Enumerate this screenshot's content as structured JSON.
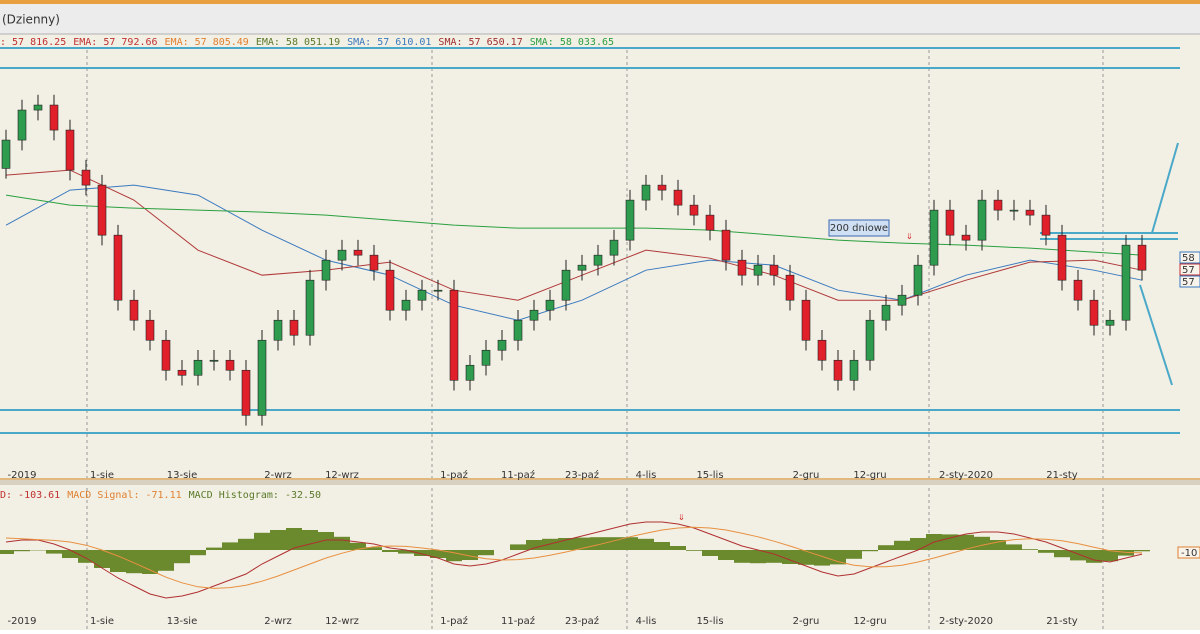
{
  "window_title": "(Dzienny)",
  "chart_data": [
    {
      "type": "candlestick",
      "legend": [
        {
          "text": ": 57 816.25",
          "color": "#c03030"
        },
        {
          "text": "EMA: 57 792.66",
          "color": "#c03030"
        },
        {
          "text": "EMA: 57 805.49",
          "color": "#e08030"
        },
        {
          "text": "EMA: 58 051.19",
          "color": "#5a7a2a"
        },
        {
          "text": "SMA: 57 610.01",
          "color": "#3a7abf"
        },
        {
          "text": "SMA: 57 650.17",
          "color": "#a03030"
        },
        {
          "text": "SMA: 58 033.65",
          "color": "#2aa040"
        }
      ],
      "categories": [
        null,
        "-2019",
        null,
        null,
        null,
        null,
        "1-sie",
        null,
        null,
        null,
        null,
        "13-sie",
        null,
        null,
        null,
        null,
        null,
        "2-wrz",
        null,
        null,
        null,
        "12-wrz",
        null,
        null,
        null,
        null,
        null,
        null,
        "1-paź",
        null,
        null,
        null,
        "11-paź",
        null,
        null,
        null,
        "23-paź",
        null,
        null,
        null,
        "4-lis",
        null,
        null,
        null,
        "15-lis",
        null,
        null,
        null,
        null,
        null,
        "2-gru",
        null,
        null,
        null,
        "12-gru",
        null,
        null,
        null,
        null,
        null,
        "2-sty-2020",
        null,
        null,
        null,
        null,
        null,
        "21-sty",
        null,
        null,
        null,
        null,
        null
      ],
      "open": [
        59300,
        59713,
        60151,
        60224,
        59859,
        59275,
        59056,
        58326,
        57377,
        57085,
        56793,
        56355,
        56282,
        56501,
        56501,
        56355,
        55698,
        56793,
        57085,
        56866,
        57669,
        57961,
        58107,
        58034,
        57815,
        57231,
        57377,
        57523,
        57523,
        56209,
        56428,
        56647,
        56793,
        57085,
        57231,
        57377,
        57815,
        57888,
        58034,
        58253,
        58837,
        59056,
        58983,
        58764,
        58618,
        58399,
        57961,
        57742,
        57888,
        57742,
        57377,
        56793,
        56501,
        56209,
        56501,
        57085,
        57304,
        57450,
        57888,
        58691,
        58326,
        58253,
        58837,
        58691,
        58691,
        58618,
        58326,
        57669,
        57377,
        57012,
        57085,
        58180
      ],
      "high": [
        59863,
        60301,
        60374,
        60374,
        60009,
        59425,
        59206,
        58476,
        57527,
        57235,
        56943,
        56505,
        56651,
        56651,
        56651,
        56505,
        56943,
        57235,
        57235,
        57819,
        58111,
        58257,
        58257,
        58184,
        57965,
        57527,
        57673,
        57673,
        57673,
        56578,
        56797,
        56943,
        57235,
        57381,
        57527,
        57965,
        58038,
        58184,
        58403,
        58987,
        59206,
        59206,
        59133,
        58914,
        58768,
        58549,
        58111,
        58038,
        58038,
        57892,
        57527,
        56943,
        56651,
        56651,
        57235,
        57454,
        57600,
        58038,
        58841,
        58841,
        58476,
        58987,
        58987,
        58841,
        58841,
        58768,
        58476,
        57819,
        57527,
        57235,
        58330,
        58330
      ],
      "low": [
        59150,
        59563,
        60001,
        59709,
        59125,
        58906,
        58176,
        57227,
        56935,
        56643,
        56205,
        56132,
        56132,
        56351,
        56205,
        55548,
        55548,
        56643,
        56716,
        56716,
        57519,
        57811,
        57884,
        57665,
        57081,
        57081,
        57227,
        57373,
        56059,
        56059,
        56278,
        56497,
        56643,
        56935,
        57081,
        57227,
        57665,
        57738,
        57884,
        58103,
        58687,
        58833,
        58614,
        58468,
        58249,
        57811,
        57592,
        57592,
        57592,
        57227,
        56643,
        56351,
        56059,
        56059,
        56351,
        56935,
        57154,
        57300,
        57738,
        58176,
        58103,
        58103,
        58541,
        58541,
        58468,
        58176,
        57519,
        57227,
        56862,
        56862,
        56935,
        57665
      ],
      "close": [
        59713,
        60151,
        60224,
        59859,
        59275,
        59056,
        58326,
        57377,
        57085,
        56793,
        56355,
        56282,
        56501,
        56501,
        56355,
        55698,
        56793,
        57085,
        56866,
        57669,
        57961,
        58107,
        58034,
        57815,
        57231,
        57377,
        57523,
        57523,
        56209,
        56428,
        56647,
        56793,
        57085,
        57231,
        57377,
        57815,
        57888,
        58034,
        58253,
        58837,
        59056,
        58983,
        58764,
        58618,
        58399,
        57961,
        57742,
        57888,
        57742,
        57377,
        56793,
        56501,
        56209,
        56501,
        57085,
        57304,
        57450,
        57888,
        58691,
        58326,
        58253,
        58837,
        58691,
        58691,
        58618,
        58326,
        57669,
        57377,
        57012,
        57085,
        58180,
        57815
      ],
      "up_color": "#2e9b4e",
      "down_color": "#e0202a",
      "ylim": [
        54900,
        61100
      ],
      "overlays": [
        {
          "color": "#3a7abf",
          "x": [
            0,
            4,
            8,
            12,
            16,
            20,
            24,
            28,
            32,
            36,
            40,
            44,
            48,
            52,
            56,
            60,
            64,
            68,
            71
          ],
          "values": [
            58472,
            58983,
            59056,
            58910,
            58399,
            57961,
            57742,
            57304,
            57085,
            57377,
            57815,
            57961,
            57888,
            57523,
            57377,
            57742,
            57961,
            57815,
            57669
          ]
        },
        {
          "color": "#b03a3a",
          "x": [
            0,
            4,
            8,
            12,
            16,
            20,
            24,
            28,
            32,
            36,
            40,
            44,
            48,
            52,
            56,
            60,
            64,
            68,
            71
          ],
          "values": [
            59202,
            59275,
            58837,
            58107,
            57742,
            57815,
            57932,
            57523,
            57377,
            57742,
            58107,
            57990,
            57742,
            57377,
            57377,
            57669,
            57932,
            57961,
            57815
          ]
        },
        {
          "color": "#2aa040",
          "x": [
            0,
            4,
            8,
            12,
            16,
            20,
            24,
            28,
            32,
            36,
            40,
            44,
            48,
            52,
            56,
            60,
            64,
            68,
            71
          ],
          "values": [
            58910,
            58764,
            58720,
            58691,
            58662,
            58618,
            58545,
            58472,
            58428,
            58428,
            58428,
            58399,
            58326,
            58253,
            58209,
            58180,
            58136,
            58078,
            58034
          ]
        }
      ],
      "annotation": "200 dniowe",
      "price_tags": [
        {
          "text": "58",
          "color": "#3a7abf"
        },
        {
          "text": "57",
          "color": "#c03030"
        },
        {
          "text": "57",
          "color": "#3a7abf"
        }
      ]
    },
    {
      "type": "macd",
      "legend": [
        {
          "text": "D: -103.61",
          "color": "#c03030"
        },
        {
          "text": "MACD Signal: -71.11",
          "color": "#e08030"
        },
        {
          "text": "MACD Histogram: -32.50",
          "color": "#5a7a2a"
        }
      ],
      "series": [
        {
          "color": "#b03030",
          "values": [
            200,
            250,
            250,
            150,
            0,
            -200,
            -450,
            -700,
            -900,
            -1100,
            -1200,
            -1150,
            -1050,
            -900,
            -750,
            -600,
            -350,
            -150,
            50,
            150,
            250,
            250,
            200,
            150,
            50,
            0,
            -100,
            -200,
            -350,
            -400,
            -350,
            -250,
            -100,
            50,
            150,
            250,
            350,
            450,
            550,
            650,
            700,
            700,
            650,
            550,
            400,
            250,
            100,
            0,
            -100,
            -250,
            -400,
            -550,
            -650,
            -600,
            -450,
            -300,
            -150,
            0,
            200,
            300,
            400,
            450,
            450,
            400,
            300,
            200,
            50,
            -100,
            -250,
            -300,
            -200,
            -103.61
          ]
        },
        {
          "color": "#e89040",
          "values": [
            300,
            280,
            260,
            240,
            200,
            120,
            0,
            -150,
            -320,
            -500,
            -680,
            -820,
            -920,
            -960,
            -940,
            -880,
            -780,
            -650,
            -500,
            -350,
            -200,
            -80,
            20,
            80,
            100,
            90,
            50,
            0,
            -70,
            -150,
            -220,
            -250,
            -240,
            -200,
            -130,
            -50,
            40,
            130,
            230,
            330,
            420,
            500,
            550,
            570,
            550,
            500,
            420,
            330,
            220,
            100,
            -30,
            -160,
            -290,
            -380,
            -420,
            -420,
            -380,
            -300,
            -200,
            -90,
            20,
            120,
            200,
            260,
            280,
            270,
            230,
            160,
            70,
            -20,
            -60,
            -71.11
          ]
        }
      ],
      "histogram": {
        "color": "#6b8a2e",
        "values": [
          -100,
          -30,
          -10,
          -90,
          -200,
          -320,
          -450,
          -550,
          -580,
          -600,
          -520,
          -330,
          -130,
          60,
          190,
          280,
          430,
          500,
          550,
          500,
          450,
          330,
          180,
          70,
          -50,
          -90,
          -150,
          -200,
          -280,
          -250,
          -130,
          0,
          140,
          250,
          280,
          300,
          310,
          320,
          320,
          320,
          280,
          200,
          100,
          -20,
          -150,
          -250,
          -320,
          -330,
          -320,
          -350,
          -370,
          -390,
          -360,
          -220,
          -30,
          120,
          230,
          300,
          400,
          390,
          380,
          330,
          250,
          140,
          20,
          -70,
          -180,
          -260,
          -320,
          -280,
          -140,
          -32.5
        ]
      },
      "ylim": [
        -1500,
        1500
      ],
      "price_tag": "-10"
    }
  ]
}
